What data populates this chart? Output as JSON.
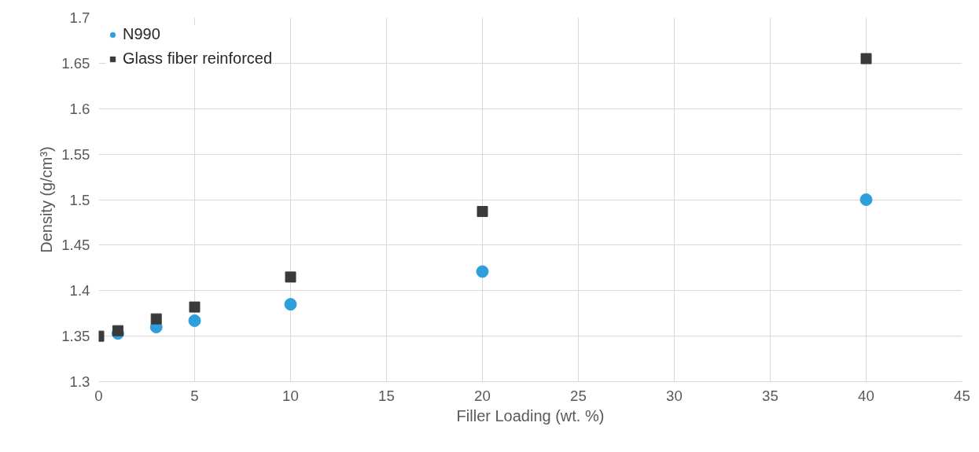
{
  "chart_data": {
    "type": "scatter",
    "xlabel": "Filler Loading (wt. %)",
    "ylabel": "Density (g/cm³)",
    "xlim": [
      0,
      45
    ],
    "xticks": [
      0,
      5,
      10,
      15,
      20,
      25,
      30,
      35,
      40,
      45
    ],
    "ylim": [
      1.3,
      1.7
    ],
    "yticks": [
      1.3,
      1.35,
      1.4,
      1.45,
      1.5,
      1.55,
      1.6,
      1.65,
      1.7
    ],
    "grid": true,
    "legend": "top left",
    "series": [
      {
        "name": "N990",
        "color": "#2e9fdc",
        "marker": "circle",
        "x": [
          1,
          3,
          5,
          10,
          20,
          40
        ],
        "values": [
          1.353,
          1.36,
          1.367,
          1.385,
          1.421,
          1.5
        ]
      },
      {
        "name": "Glass fiber reinforced",
        "color": "#3a3a3a",
        "marker": "square",
        "x": [
          0,
          1,
          3,
          5,
          10,
          20,
          40
        ],
        "values": [
          1.35,
          1.356,
          1.369,
          1.382,
          1.415,
          1.487,
          1.655
        ]
      }
    ]
  }
}
